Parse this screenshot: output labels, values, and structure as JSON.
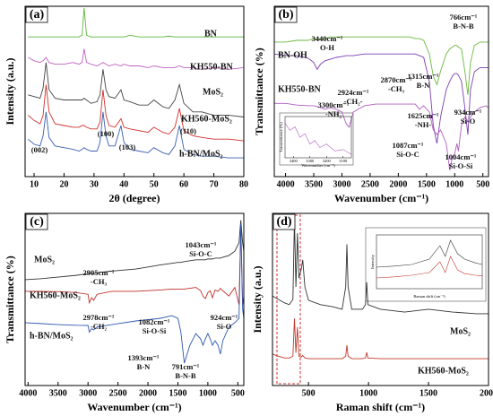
{
  "chart_data": [
    {
      "type": "line",
      "panel": "(a)",
      "xlabel": "2θ (degree)",
      "ylabel": "Intensity (a.u.)",
      "xlim": [
        7,
        80
      ],
      "xticks": [
        10,
        20,
        30,
        40,
        50,
        60,
        70,
        80
      ],
      "ylim": [
        0,
        100
      ],
      "x": [
        8,
        10,
        12,
        13,
        14,
        15,
        17,
        20,
        23,
        25,
        26,
        26.7,
        27.5,
        29,
        31,
        32,
        33,
        34,
        35,
        37,
        39,
        40,
        42,
        45,
        48,
        50,
        53,
        55,
        57,
        58.5,
        60,
        63,
        66,
        70,
        75,
        80
      ],
      "series": [
        {
          "name": "BN",
          "color": "#5cb83c",
          "values": [
            82,
            82,
            82,
            82,
            82,
            82,
            82,
            82,
            82,
            82,
            83,
            99,
            83,
            82,
            82,
            82,
            82,
            82,
            82,
            82,
            82,
            82,
            83,
            82,
            82,
            82,
            82,
            82.5,
            82,
            82,
            82,
            82,
            82,
            82,
            82,
            82
          ]
        },
        {
          "name": "KH550-BN",
          "color": "#c060c0",
          "values": [
            70,
            68,
            67,
            68,
            70,
            67,
            66,
            66,
            67,
            66,
            67,
            75,
            67,
            66,
            65,
            66,
            67,
            66,
            65,
            66,
            65,
            66,
            65,
            65,
            64,
            65,
            64,
            64,
            64,
            65,
            64,
            64,
            63,
            64,
            63,
            64
          ]
        },
        {
          "name": "MoS₂",
          "color": "#444444",
          "values": [
            48,
            47,
            46,
            52,
            67,
            51,
            46,
            45,
            45,
            45,
            45,
            46,
            45,
            43,
            44,
            48,
            63,
            51,
            47,
            46,
            51,
            45,
            44,
            42,
            42,
            45,
            41,
            40,
            45,
            54,
            43,
            38,
            38,
            36,
            36,
            35
          ]
        },
        {
          "name": "KH560-MoS₂",
          "color": "#d0302a",
          "values": [
            36,
            33,
            31,
            36,
            54,
            38,
            31,
            30,
            29,
            29,
            30,
            30,
            29,
            28,
            28,
            32,
            51,
            36,
            30,
            29,
            34,
            29,
            28,
            27,
            26,
            29,
            26,
            25,
            29,
            40,
            27,
            24,
            23,
            22,
            22,
            21
          ]
        },
        {
          "name": "h-BN/MoS₂",
          "color": "#3a5fb0",
          "values": [
            22,
            19,
            18,
            24,
            38,
            23,
            18,
            17,
            16,
            15,
            16,
            17,
            16,
            15,
            15,
            20,
            38,
            24,
            18,
            18,
            30,
            20,
            16,
            15,
            14,
            17,
            14,
            13,
            18,
            30,
            16,
            13,
            12,
            12,
            11,
            11
          ]
        }
      ],
      "annotations": [
        [
          "(002)"
        ],
        [
          "(100)"
        ],
        [
          "(103)"
        ],
        [
          "(110)"
        ]
      ]
    },
    {
      "type": "line",
      "panel": "(b)",
      "xlabel": "Wavenumber (cm⁻¹)",
      "ylabel": "Transmittance (%)",
      "xlim": [
        4200,
        400
      ],
      "xticks": [
        4000,
        3500,
        3000,
        2500,
        2000,
        1500,
        1000,
        500
      ],
      "ylim": [
        0,
        100
      ],
      "x": [
        4200,
        4000,
        3800,
        3600,
        3500,
        3440,
        3380,
        3300,
        3200,
        3100,
        3000,
        2924,
        2870,
        2800,
        2600,
        2400,
        2200,
        2000,
        1800,
        1700,
        1625,
        1550,
        1450,
        1380,
        1315,
        1250,
        1150,
        1087,
        1040,
        1004,
        960,
        934,
        880,
        820,
        766,
        720,
        650,
        550,
        450,
        400
      ],
      "series": [
        {
          "name": "BN",
          "color": "#6ab83a",
          "values": [
            79,
            79,
            80,
            80,
            81,
            81,
            81,
            81,
            82,
            82,
            82,
            82,
            82,
            82,
            82,
            82,
            82,
            82,
            82,
            81,
            81,
            80,
            72,
            59,
            54,
            62,
            72,
            75,
            76,
            77,
            77,
            76,
            75,
            62,
            48,
            67,
            77,
            79,
            79,
            79
          ]
        },
        {
          "name": "BN-OH",
          "color": "#7a3fb0",
          "values": [
            72,
            71,
            71,
            69.5,
            67,
            63,
            66,
            68,
            69,
            70,
            70.5,
            71,
            71,
            71,
            72,
            72,
            72,
            72,
            72,
            72,
            71,
            70,
            56,
            30,
            19.5,
            35,
            51,
            56,
            59,
            60.5,
            60.5,
            59.5,
            56,
            40.5,
            24.7,
            51,
            61.6,
            64,
            64,
            64
          ]
        },
        {
          "name": "KH550-BN",
          "color": "#b05cc0",
          "values": [
            43,
            43,
            42,
            41.6,
            41.6,
            41,
            40.5,
            39.5,
            40.5,
            39.5,
            37.9,
            31,
            29,
            37.9,
            41.6,
            42.6,
            42.6,
            42.6,
            42.6,
            42.6,
            39.5,
            41.6,
            37.9,
            27.4,
            24.7,
            27.4,
            19.5,
            3.7,
            11.6,
            13,
            19.5,
            15,
            30,
            35,
            32.6,
            35,
            37.9,
            40.5,
            41.6,
            40.5
          ]
        }
      ],
      "annotations": [
        [
          "3440cm⁻¹",
          "O-H"
        ],
        [
          "2924cm⁻¹",
          "-CH₂-"
        ],
        [
          "2870cm⁻¹",
          "-CH₃"
        ],
        [
          "1315cm⁻¹",
          "B-N"
        ],
        [
          "766cm⁻¹",
          "B-N-B"
        ],
        [
          "3300cm⁻¹",
          "-NH₂"
        ],
        [
          "1625cm⁻¹",
          "-NH-"
        ],
        [
          "934cm⁻¹",
          "Si-O"
        ],
        [
          "1087cm⁻¹",
          "Si-O-C"
        ],
        [
          "1004cm⁻¹",
          "Si-O-Si"
        ]
      ]
    },
    {
      "type": "line",
      "xlabel": "Wavenumber (cm⁻¹)",
      "ylabel": "Transmittance (%)",
      "xlim": [
        3450,
        3050
      ],
      "xticks": [
        3400,
        3300,
        3200,
        3100
      ],
      "ylim": [
        30,
        90
      ],
      "x": [
        3450,
        3420,
        3390,
        3360,
        3330,
        3300,
        3270,
        3240,
        3200,
        3150,
        3100,
        3050
      ],
      "series": [
        {
          "name": "KH550-BN",
          "color": "#b05cc0",
          "values": [
            80,
            70,
            75,
            60,
            65,
            50,
            55,
            45,
            50,
            40,
            42,
            35
          ]
        }
      ]
    },
    {
      "type": "line",
      "panel": "(c)",
      "xlabel": "Wavenumber (cm⁻¹)",
      "ylabel": "Transmittance (%)",
      "xlim": [
        4050,
        400
      ],
      "xticks": [
        4000,
        3500,
        3000,
        2500,
        2000,
        1500,
        1000,
        500
      ],
      "ylim": [
        0,
        100
      ],
      "x": [
        4050,
        3800,
        3500,
        3200,
        3000,
        2978,
        2940,
        2905,
        2850,
        2600,
        2200,
        1800,
        1600,
        1500,
        1450,
        1393,
        1300,
        1200,
        1120,
        1082,
        1043,
        1000,
        960,
        924,
        880,
        830,
        791,
        750,
        650,
        550,
        480,
        450,
        420,
        400
      ],
      "series": [
        {
          "name": "MoS₂",
          "color": "#333333",
          "values": [
            61.5,
            62,
            63,
            64,
            65,
            65,
            65,
            65,
            65.5,
            66.5,
            67.7,
            70,
            71,
            71.5,
            71.5,
            72,
            72.5,
            73,
            73,
            73,
            73,
            73.5,
            73.5,
            73.5,
            74,
            74,
            74,
            74.5,
            75.5,
            78,
            83,
            96,
            83,
            78
          ]
        },
        {
          "name": "KH560-MoS₂",
          "color": "#c0302a",
          "values": [
            54.7,
            54.7,
            54.5,
            54,
            53,
            48,
            51,
            49.5,
            53,
            54.7,
            54.7,
            55.5,
            56,
            56,
            56,
            56,
            56.5,
            57,
            55,
            52,
            50.5,
            54,
            55,
            51,
            55.5,
            54.7,
            56.5,
            55,
            52,
            57,
            47,
            91,
            47,
            52
          ]
        },
        {
          "name": "h-BN/MoS₂",
          "color": "#2f57b0",
          "values": [
            36.5,
            36,
            35.4,
            35,
            34.9,
            31,
            33,
            32.3,
            34,
            35.4,
            37.5,
            39,
            40.6,
            39,
            31,
            13,
            23.4,
            30.2,
            27,
            23.4,
            27,
            30.2,
            27,
            23.4,
            26,
            23.4,
            18.2,
            26,
            33.9,
            36.5,
            39,
            94,
            44.3,
            39
          ]
        }
      ],
      "annotations": [
        [
          "2905cm⁻¹",
          "-CH₃"
        ],
        [
          "2978cm⁻¹",
          "-CH₂"
        ],
        [
          "1043cm⁻¹",
          "Si-O-C"
        ],
        [
          "1082cm⁻¹",
          "Si-O-Si"
        ],
        [
          "924cm⁻¹",
          "Si-O"
        ],
        [
          "1393cm⁻¹",
          "B-N"
        ],
        [
          "791cm⁻¹",
          "B-N-B"
        ]
      ]
    },
    {
      "type": "line",
      "panel": "(d)",
      "xlabel": "Raman shift (cm⁻¹)",
      "ylabel": "Intensity (a.u.)",
      "xlim": [
        200,
        2000
      ],
      "xticks": [
        500,
        1000,
        1500,
        2000
      ],
      "ylim": [
        0,
        100
      ],
      "x": [
        200,
        250,
        300,
        340,
        370,
        383,
        395,
        408,
        420,
        440,
        452,
        470,
        500,
        600,
        700,
        780,
        810,
        820,
        830,
        860,
        950,
        975,
        985,
        995,
        1100,
        1300,
        1500,
        1700,
        1900,
        2000
      ],
      "series": [
        {
          "name": "MoS₂",
          "color": "#333333",
          "values": [
            52,
            50,
            48,
            47,
            50,
            97,
            57.3,
            88.5,
            62.5,
            67.7,
            73,
            57.3,
            49.5,
            47,
            45.8,
            44.3,
            57.3,
            82,
            57.3,
            44.3,
            44.3,
            47,
            60,
            47,
            44.3,
            42.7,
            44.3,
            42.7,
            41.7,
            41.7
          ]
        },
        {
          "name": "KH560-MoS₂",
          "color": "#c0392b",
          "values": [
            18.2,
            17,
            16,
            16,
            17,
            39,
            19,
            33.9,
            17,
            16.5,
            17.5,
            16,
            15.6,
            15.6,
            15.6,
            15.6,
            17,
            23.4,
            17,
            15.6,
            15.6,
            16,
            19.3,
            16,
            15.6,
            15.6,
            15.6,
            15.6,
            15.6,
            15.6
          ]
        }
      ]
    },
    {
      "type": "line",
      "xlabel": "Raman shift (cm⁻¹)",
      "ylabel": "Intensity",
      "xlim": [
        200,
        500
      ],
      "ylim": [
        0,
        100
      ],
      "x": [
        200,
        250,
        300,
        350,
        380,
        395,
        410,
        430,
        450,
        480,
        500
      ],
      "series": [
        {
          "name": "MoS₂",
          "color": "#333333",
          "values": [
            40,
            42,
            45,
            55,
            80,
            60,
            90,
            65,
            55,
            48,
            45
          ]
        },
        {
          "name": "KH560-MoS₂",
          "color": "#c0392b",
          "values": [
            20,
            22,
            25,
            30,
            50,
            30,
            60,
            35,
            28,
            25,
            24
          ]
        }
      ]
    }
  ]
}
